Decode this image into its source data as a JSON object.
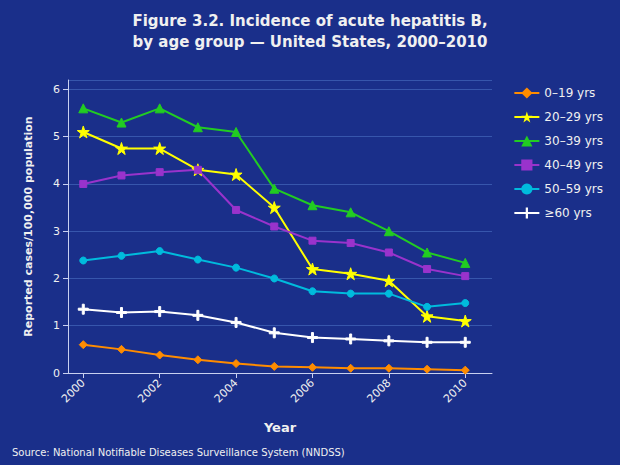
{
  "chart_data": {
    "type": "line",
    "title": "Figure 3.2. Incidence of acute hepatitis B,",
    "subtitle": "by age group — United States, 2000–2010",
    "xlabel": "Year",
    "ylabel": "Reported cases/100,000 population",
    "annotations": [
      "Source: National Notifiable Diseases Surveillance System (NNDSS)"
    ],
    "x": [
      2000,
      2001,
      2002,
      2003,
      2004,
      2005,
      2006,
      2007,
      2008,
      2009,
      2010
    ],
    "series": [
      {
        "name": "0–19 yrs",
        "color": "#FF8C00",
        "marker": "diamond",
        "values": [
          0.6,
          0.5,
          0.38,
          0.28,
          0.2,
          0.14,
          0.12,
          0.1,
          0.1,
          0.08,
          0.06
        ]
      },
      {
        "name": "20–29 yrs",
        "color": "#FFFF00",
        "marker": "star",
        "values": [
          5.1,
          4.75,
          4.75,
          4.3,
          4.2,
          3.5,
          2.2,
          2.1,
          1.95,
          1.2,
          1.1
        ]
      },
      {
        "name": "30–39 yrs",
        "color": "#22CC22",
        "marker": "triangle",
        "values": [
          5.6,
          5.3,
          5.6,
          5.2,
          5.1,
          3.9,
          3.55,
          3.4,
          3.0,
          2.55,
          2.33
        ]
      },
      {
        "name": "40–49 yrs",
        "color": "#9933CC",
        "marker": "square",
        "values": [
          4.0,
          4.18,
          4.25,
          4.3,
          3.45,
          3.1,
          2.8,
          2.75,
          2.55,
          2.2,
          2.05
        ]
      },
      {
        "name": "50–59 yrs",
        "color": "#00BBDD",
        "marker": "circle",
        "values": [
          2.38,
          2.48,
          2.58,
          2.4,
          2.23,
          2.0,
          1.73,
          1.68,
          1.68,
          1.4,
          1.48
        ]
      },
      {
        "name": "≥60 yrs",
        "color": "#FFFFFF",
        "marker": "plus",
        "values": [
          1.35,
          1.28,
          1.3,
          1.22,
          1.07,
          0.85,
          0.75,
          0.72,
          0.68,
          0.65,
          0.65
        ]
      }
    ],
    "xlim": [
      1999.6,
      2010.7
    ],
    "xticks": [
      2000,
      2002,
      2004,
      2006,
      2008,
      2010
    ],
    "ylim": [
      0,
      6.2
    ],
    "yticks": [
      0,
      1,
      2,
      3,
      4,
      5,
      6
    ],
    "grid": true,
    "legend": "right"
  }
}
